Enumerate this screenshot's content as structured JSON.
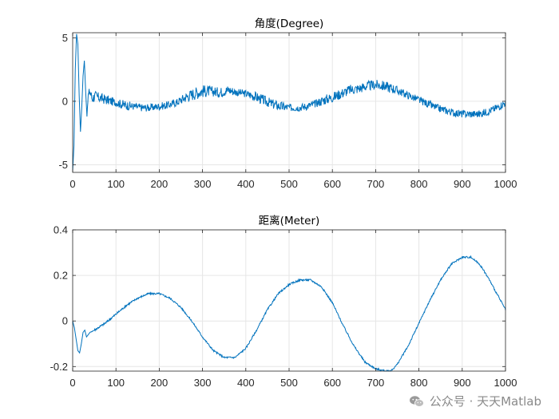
{
  "chart_data": [
    {
      "type": "line",
      "title": "角度(Degree)",
      "xlabel": "",
      "ylabel": "",
      "xlim": [
        0,
        1000
      ],
      "ylim": [
        -5.6,
        5.4
      ],
      "xticks": [
        0,
        100,
        200,
        300,
        400,
        500,
        600,
        700,
        800,
        900,
        1000
      ],
      "yticks": [
        -5,
        0,
        5
      ],
      "grid": true,
      "series": [
        {
          "color": "#0072bd",
          "x": [
            0,
            3,
            6,
            9,
            12,
            15,
            18,
            21,
            24,
            27,
            30,
            33,
            36,
            40,
            45,
            50,
            60,
            80,
            100,
            120,
            140,
            160,
            180,
            200,
            220,
            240,
            260,
            280,
            300,
            320,
            340,
            360,
            380,
            400,
            420,
            440,
            460,
            480,
            500,
            520,
            540,
            560,
            580,
            600,
            620,
            640,
            660,
            680,
            700,
            720,
            740,
            760,
            780,
            800,
            820,
            840,
            860,
            880,
            900,
            920,
            940,
            960,
            980,
            1000
          ],
          "values": [
            -5.5,
            -3.5,
            2.5,
            5.3,
            4.5,
            0.5,
            -2.4,
            -0.5,
            2.0,
            3.2,
            0.8,
            -1.2,
            0.5,
            0.8,
            0.2,
            0.4,
            0.3,
            0.1,
            -0.1,
            -0.3,
            -0.4,
            -0.5,
            -0.5,
            -0.4,
            -0.3,
            -0.1,
            0.3,
            0.6,
            0.8,
            0.8,
            0.7,
            0.9,
            0.7,
            0.6,
            0.4,
            0.1,
            -0.2,
            -0.4,
            -0.5,
            -0.5,
            -0.4,
            -0.2,
            0.1,
            0.3,
            0.6,
            0.9,
            1.0,
            1.2,
            1.3,
            1.2,
            1.0,
            0.7,
            0.4,
            0.1,
            -0.2,
            -0.5,
            -0.7,
            -0.9,
            -1.0,
            -1.0,
            -1.0,
            -0.8,
            -0.5,
            -0.1
          ],
          "noise": [
            0,
            0,
            0,
            0,
            0,
            0,
            0,
            0,
            0,
            0,
            0,
            0,
            0.3,
            0.5,
            0.4,
            0.5,
            0.4,
            0.4,
            0.3,
            0.4,
            0.3,
            0.3,
            0.3,
            0.3,
            0.3,
            0.3,
            0.4,
            0.5,
            0.5,
            0.4,
            0.4,
            0.4,
            0.3,
            0.3,
            0.4,
            0.4,
            0.4,
            0.4,
            0.3,
            0.3,
            0.3,
            0.3,
            0.4,
            0.4,
            0.4,
            0.4,
            0.4,
            0.4,
            0.4,
            0.4,
            0.4,
            0.3,
            0.3,
            0.3,
            0.3,
            0.3,
            0.3,
            0.3,
            0.3,
            0.3,
            0.3,
            0.3,
            0.3,
            0.3
          ]
        }
      ]
    },
    {
      "type": "line",
      "title": "距离(Meter)",
      "xlabel": "",
      "ylabel": "",
      "xlim": [
        0,
        1000
      ],
      "ylim": [
        -0.22,
        0.4
      ],
      "xticks": [
        0,
        100,
        200,
        300,
        400,
        500,
        600,
        700,
        800,
        900,
        1000
      ],
      "yticks": [
        -0.2,
        0,
        0.2,
        0.4
      ],
      "grid": true,
      "series": [
        {
          "color": "#0072bd",
          "x": [
            0,
            4,
            8,
            12,
            16,
            20,
            24,
            28,
            32,
            36,
            40,
            50,
            75,
            100,
            125,
            150,
            175,
            200,
            225,
            250,
            275,
            300,
            325,
            350,
            365,
            375,
            400,
            425,
            450,
            475,
            500,
            525,
            550,
            575,
            600,
            625,
            650,
            675,
            700,
            725,
            735,
            750,
            775,
            800,
            825,
            850,
            875,
            900,
            920,
            940,
            960,
            980,
            1000
          ],
          "values": [
            0.0,
            -0.03,
            -0.08,
            -0.13,
            -0.14,
            -0.1,
            -0.05,
            -0.04,
            -0.07,
            -0.06,
            -0.05,
            -0.04,
            -0.01,
            0.03,
            0.07,
            0.1,
            0.12,
            0.12,
            0.1,
            0.06,
            0.0,
            -0.07,
            -0.13,
            -0.16,
            -0.16,
            -0.16,
            -0.12,
            -0.04,
            0.05,
            0.12,
            0.16,
            0.18,
            0.18,
            0.15,
            0.08,
            -0.02,
            -0.11,
            -0.18,
            -0.21,
            -0.22,
            -0.22,
            -0.19,
            -0.11,
            -0.01,
            0.09,
            0.18,
            0.25,
            0.28,
            0.28,
            0.25,
            0.19,
            0.12,
            0.05
          ],
          "noise": [
            0,
            0,
            0,
            0,
            0,
            0,
            0,
            0,
            0,
            0,
            0,
            0.005,
            0.005,
            0.005,
            0.005,
            0.004,
            0.004,
            0.004,
            0.004,
            0.004,
            0.004,
            0.004,
            0.004,
            0.004,
            0.004,
            0.004,
            0.004,
            0.004,
            0.004,
            0.004,
            0.004,
            0.004,
            0.004,
            0.004,
            0.004,
            0.004,
            0.004,
            0.004,
            0.004,
            0.004,
            0.004,
            0.004,
            0.004,
            0.004,
            0.004,
            0.004,
            0.004,
            0.004,
            0.004,
            0.004,
            0.004,
            0.004,
            0.004
          ]
        }
      ]
    }
  ],
  "watermark": {
    "icon": "wechat-icon",
    "text": "公众号 · 天天Matlab",
    "color": "#8a8a8a"
  }
}
